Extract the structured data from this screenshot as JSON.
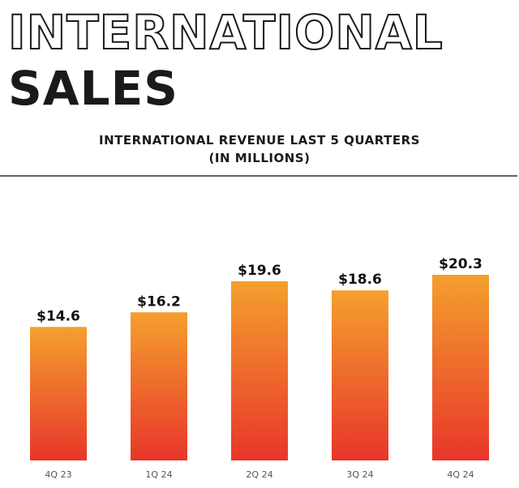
{
  "header": {
    "title_line1": "INTERNATIONAL",
    "title_line2": "SALES"
  },
  "chart_data": {
    "type": "bar",
    "title": "INTERNATIONAL REVENUE LAST 5 QUARTERS",
    "subtitle": "(IN MILLIONS)",
    "categories": [
      "4Q 23",
      "1Q 24",
      "2Q 24",
      "3Q 24",
      "4Q 24"
    ],
    "values": [
      14.6,
      16.2,
      19.6,
      18.6,
      20.3
    ],
    "data_labels": [
      "$14.6",
      "$16.2",
      "$19.6",
      "$18.6",
      "$20.3"
    ],
    "ylim": [
      0,
      22
    ],
    "grid": false,
    "colors": {
      "bar_top": "#f4a02e",
      "bar_bottom": "#e8362a",
      "axis_line": "#333333",
      "tick_text": "#555555",
      "label_text": "#111111"
    }
  }
}
